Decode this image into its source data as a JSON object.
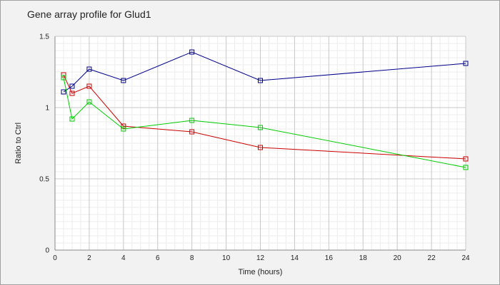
{
  "chart_data": {
    "type": "line",
    "title": "Gene array profile for Glud1",
    "xlabel": "Time (hours)",
    "ylabel": "Ratio to Ctrl",
    "xlim": [
      0,
      24
    ],
    "ylim": [
      0,
      1.5
    ],
    "x_ticks": [
      "0",
      "2",
      "4",
      "6",
      "8",
      "10",
      "12",
      "14",
      "16",
      "18",
      "20",
      "22",
      "24"
    ],
    "y_ticks": [
      "0",
      "0.5",
      "1",
      "1.5"
    ],
    "grid": true,
    "legend": "none",
    "marker": "square",
    "series": [
      {
        "color": "#00008b",
        "x": [
          0.5,
          1,
          2,
          4,
          8,
          12,
          24
        ],
        "y": [
          1.11,
          1.15,
          1.27,
          1.19,
          1.39,
          1.19,
          1.31
        ]
      },
      {
        "color": "#cc0000",
        "x": [
          0.5,
          1,
          2,
          4,
          8,
          12,
          24
        ],
        "y": [
          1.23,
          1.1,
          1.15,
          0.87,
          0.83,
          0.72,
          0.64
        ]
      },
      {
        "color": "#00cc00",
        "x": [
          0.5,
          1,
          2,
          4,
          8,
          12,
          24
        ],
        "y": [
          1.21,
          0.92,
          1.04,
          0.85,
          0.91,
          0.86,
          0.58
        ]
      }
    ]
  }
}
